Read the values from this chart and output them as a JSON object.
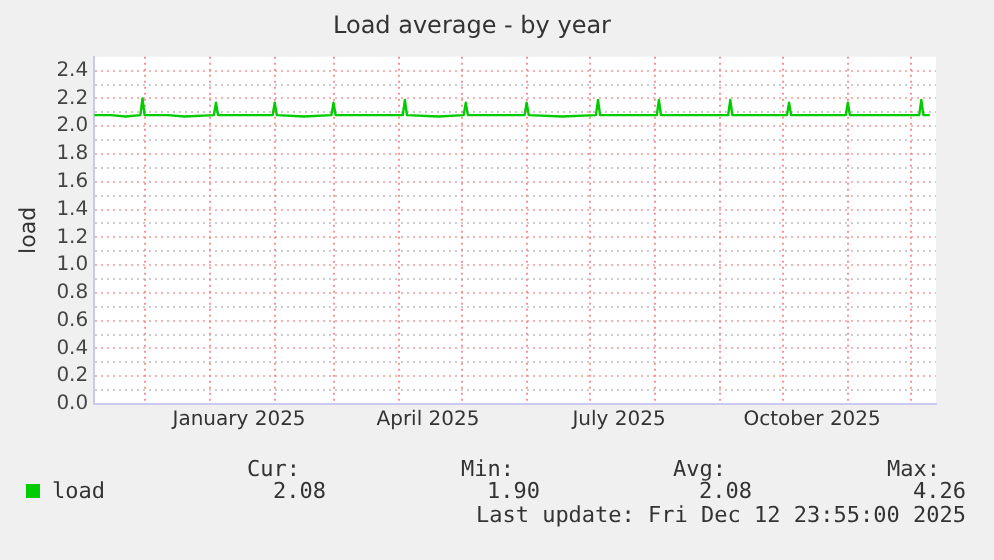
{
  "chart_data": {
    "type": "line",
    "title": "Load average - by year",
    "ylabel": "load",
    "xlim": [
      "2024-11-07",
      "2025-12-13"
    ],
    "xticks": [
      {
        "value": "2024-12-01",
        "label": null
      },
      {
        "value": "2025-01-01",
        "label": null
      },
      {
        "value": "2025-01-15",
        "label": "January 2025"
      },
      {
        "value": "2025-02-01",
        "label": null
      },
      {
        "value": "2025-03-01",
        "label": null
      },
      {
        "value": "2025-04-01",
        "label": null
      },
      {
        "value": "2025-04-15",
        "label": "April 2025"
      },
      {
        "value": "2025-05-01",
        "label": null
      },
      {
        "value": "2025-06-01",
        "label": null
      },
      {
        "value": "2025-07-01",
        "label": null
      },
      {
        "value": "2025-07-15",
        "label": "July 2025"
      },
      {
        "value": "2025-08-01",
        "label": null
      },
      {
        "value": "2025-09-01",
        "label": null
      },
      {
        "value": "2025-10-01",
        "label": null
      },
      {
        "value": "2025-10-15",
        "label": "October 2025"
      },
      {
        "value": "2025-11-01",
        "label": null
      },
      {
        "value": "2025-12-01",
        "label": null
      }
    ],
    "ylim": [
      0,
      2.5
    ],
    "yticks": [
      {
        "value": 0,
        "label": "0.0"
      },
      {
        "value": 0.1,
        "label": null
      },
      0.2,
      {
        "value": 0.3,
        "label": null
      },
      0.4,
      {
        "value": 0.5,
        "label": null
      },
      0.6,
      {
        "value": 0.7,
        "label": null
      },
      0.8,
      {
        "value": 0.9,
        "label": null
      },
      {
        "value": 1,
        "label": "1.0"
      },
      {
        "value": 1.1,
        "label": null
      },
      1.2,
      {
        "value": 1.3,
        "label": null
      },
      1.4,
      {
        "value": 1.5,
        "label": null
      },
      1.6,
      {
        "value": 1.7,
        "label": null
      },
      1.8,
      {
        "value": 1.9,
        "label": null
      },
      {
        "value": 2,
        "label": "2.0"
      },
      {
        "value": 2.1,
        "label": null
      },
      2.2,
      {
        "value": 2.3,
        "label": null
      },
      2.4
    ],
    "grid": true,
    "legend": "bottom left",
    "marker": "none",
    "line_style": "solid",
    "x": [
      "2024-11-07",
      "2024-11-15",
      "2024-11-22",
      "2024-11-29",
      "2024-11-30",
      "2024-12-01",
      "2024-12-12",
      "2024-12-20",
      "2025-01-03",
      "2025-01-04",
      "2025-01-05",
      "2025-01-18",
      "2025-01-31",
      "2025-02-01",
      "2025-02-02",
      "2025-02-15",
      "2025-02-28",
      "2025-03-01",
      "2025-03-02",
      "2025-03-18",
      "2025-04-03",
      "2025-04-04",
      "2025-04-05",
      "2025-04-20",
      "2025-05-02",
      "2025-05-03",
      "2025-05-04",
      "2025-05-18",
      "2025-05-31",
      "2025-06-01",
      "2025-06-02",
      "2025-06-18",
      "2025-07-04",
      "2025-07-05",
      "2025-07-06",
      "2025-07-20",
      "2025-08-02",
      "2025-08-03",
      "2025-08-04",
      "2025-08-20",
      "2025-09-05",
      "2025-09-06",
      "2025-09-07",
      "2025-09-20",
      "2025-10-03",
      "2025-10-04",
      "2025-10-05",
      "2025-10-18",
      "2025-10-31",
      "2025-11-01",
      "2025-11-02",
      "2025-11-18",
      "2025-12-05",
      "2025-12-06",
      "2025-12-07",
      "2025-12-10"
    ],
    "series": [
      {
        "name": "load",
        "color": "#00cc00",
        "values": [
          2.08,
          2.08,
          2.07,
          2.08,
          2.2,
          2.08,
          2.08,
          2.07,
          2.08,
          2.17,
          2.08,
          2.08,
          2.08,
          2.17,
          2.08,
          2.07,
          2.08,
          2.17,
          2.08,
          2.08,
          2.08,
          2.19,
          2.08,
          2.07,
          2.08,
          2.17,
          2.08,
          2.08,
          2.08,
          2.17,
          2.08,
          2.07,
          2.08,
          2.19,
          2.08,
          2.08,
          2.08,
          2.19,
          2.08,
          2.08,
          2.08,
          2.19,
          2.08,
          2.08,
          2.08,
          2.17,
          2.08,
          2.08,
          2.08,
          2.17,
          2.08,
          2.08,
          2.08,
          2.19,
          2.08,
          2.08
        ]
      }
    ],
    "annotations": [
      "Cur:",
      "Min:",
      "Avg:",
      "Max:",
      "2.08",
      "1.90",
      "2.08",
      "4.26",
      "Last update: Fri Dec 12 23:55:00 2025"
    ]
  }
}
